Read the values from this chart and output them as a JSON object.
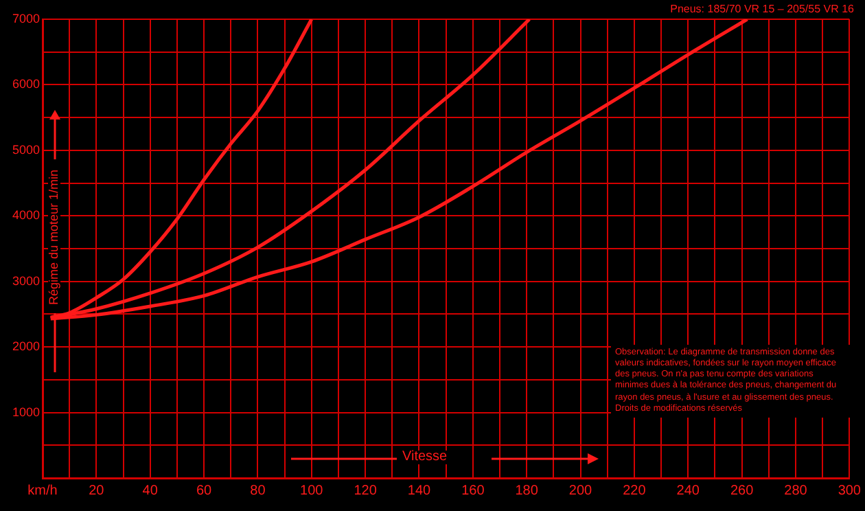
{
  "chart_data": {
    "type": "line",
    "title": "Pneus: 185/70 VR 15 – 205/55 VR 16",
    "xlabel": "Vitesse",
    "ylabel": "Régime du moteur 1/min",
    "annotations": [
      "Observation: Le diagramme de transmission donne des valeurs indicatives, fondées sur le rayon moyen efficace des pneus. On n'a pas tenu compte des variations minimes dues à la tolérance des pneus, changement du rayon des pneus, à l'usure et au glissement des pneus.",
      "Droits de modifications réservés"
    ],
    "series": [
      {
        "color": "#ff1a1a",
        "x": [
          3,
          10,
          20,
          30,
          40,
          50,
          60,
          70,
          80,
          90,
          100
        ],
        "values": [
          2450,
          2520,
          2750,
          3030,
          3450,
          3950,
          4550,
          5100,
          5600,
          6250,
          7000
        ]
      },
      {
        "color": "#ff1a1a",
        "x": [
          3,
          20,
          40,
          60,
          80,
          100,
          120,
          140,
          160,
          181
        ],
        "values": [
          2440,
          2580,
          2820,
          3120,
          3520,
          4070,
          4700,
          5450,
          6150,
          7000
        ]
      },
      {
        "color": "#ff1a1a",
        "x": [
          3,
          20,
          40,
          60,
          80,
          100,
          120,
          140,
          160,
          180,
          200,
          220,
          240,
          262
        ],
        "values": [
          2430,
          2490,
          2620,
          2780,
          3070,
          3300,
          3640,
          3980,
          4450,
          4970,
          5450,
          5950,
          6460,
          7000
        ]
      }
    ],
    "xlim": [
      0,
      300
    ],
    "xticks": [
      {
        "value": 0,
        "label": "km/h"
      },
      {
        "value": 10,
        "label": null
      },
      20,
      {
        "value": 30,
        "label": null
      },
      40,
      {
        "value": 50,
        "label": null
      },
      60,
      {
        "value": 70,
        "label": null
      },
      80,
      {
        "value": 90,
        "label": null
      },
      100,
      {
        "value": 110,
        "label": null
      },
      120,
      {
        "value": 130,
        "label": null
      },
      140,
      {
        "value": 150,
        "label": null
      },
      160,
      {
        "value": 170,
        "label": null
      },
      180,
      {
        "value": 190,
        "label": null
      },
      200,
      {
        "value": 210,
        "label": null
      },
      220,
      {
        "value": 230,
        "label": null
      },
      240,
      {
        "value": 250,
        "label": null
      },
      260,
      {
        "value": 270,
        "label": null
      },
      280,
      {
        "value": 290,
        "label": null
      },
      300
    ],
    "ylim": [
      0,
      7000
    ],
    "yticks": [
      {
        "value": 0,
        "label": null
      },
      {
        "value": 500,
        "label": null
      },
      1000,
      {
        "value": 1500,
        "label": null
      },
      2000,
      {
        "value": 2500,
        "label": null
      },
      3000,
      {
        "value": 3500,
        "label": null
      },
      4000,
      {
        "value": 4500,
        "label": null
      },
      5000,
      {
        "value": 5500,
        "label": null
      },
      6000,
      {
        "value": 6500,
        "label": null
      },
      7000
    ],
    "grid": true,
    "legend": false,
    "marker": "none",
    "line_style": "solid"
  }
}
